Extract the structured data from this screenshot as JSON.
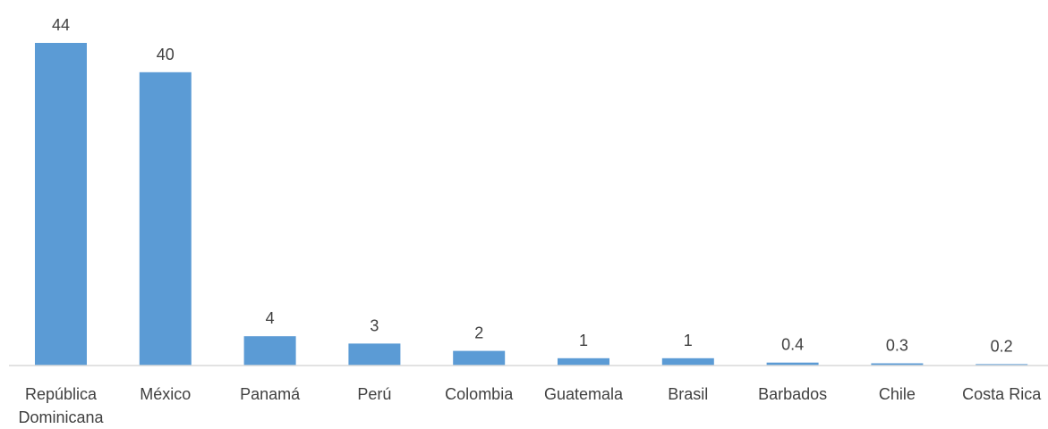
{
  "chart_data": {
    "type": "bar",
    "title": "",
    "xlabel": "",
    "ylabel": "",
    "categories": [
      "República Dominicana",
      "México",
      "Panamá",
      "Perú",
      "Colombia",
      "Guatemala",
      "Brasil",
      "Barbados",
      "Chile",
      "Costa Rica"
    ],
    "category_lines": [
      [
        "República",
        "Dominicana"
      ],
      [
        "México"
      ],
      [
        "Panamá"
      ],
      [
        "Perú"
      ],
      [
        "Colombia"
      ],
      [
        "Guatemala"
      ],
      [
        "Brasil"
      ],
      [
        "Barbados"
      ],
      [
        "Chile"
      ],
      [
        "Costa Rica"
      ]
    ],
    "values": [
      44,
      40,
      4,
      3,
      2,
      1,
      1,
      0.4,
      0.3,
      0.2
    ],
    "data_labels": [
      "44",
      "40",
      "4",
      "3",
      "2",
      "1",
      "1",
      "0.4",
      "0.3",
      "0.2"
    ],
    "ylim": [
      0,
      44
    ],
    "grid": false,
    "legend": "none",
    "colors": {
      "bar": "#5b9bd5",
      "text": "#404040",
      "axis": "#d9d9d9"
    }
  }
}
